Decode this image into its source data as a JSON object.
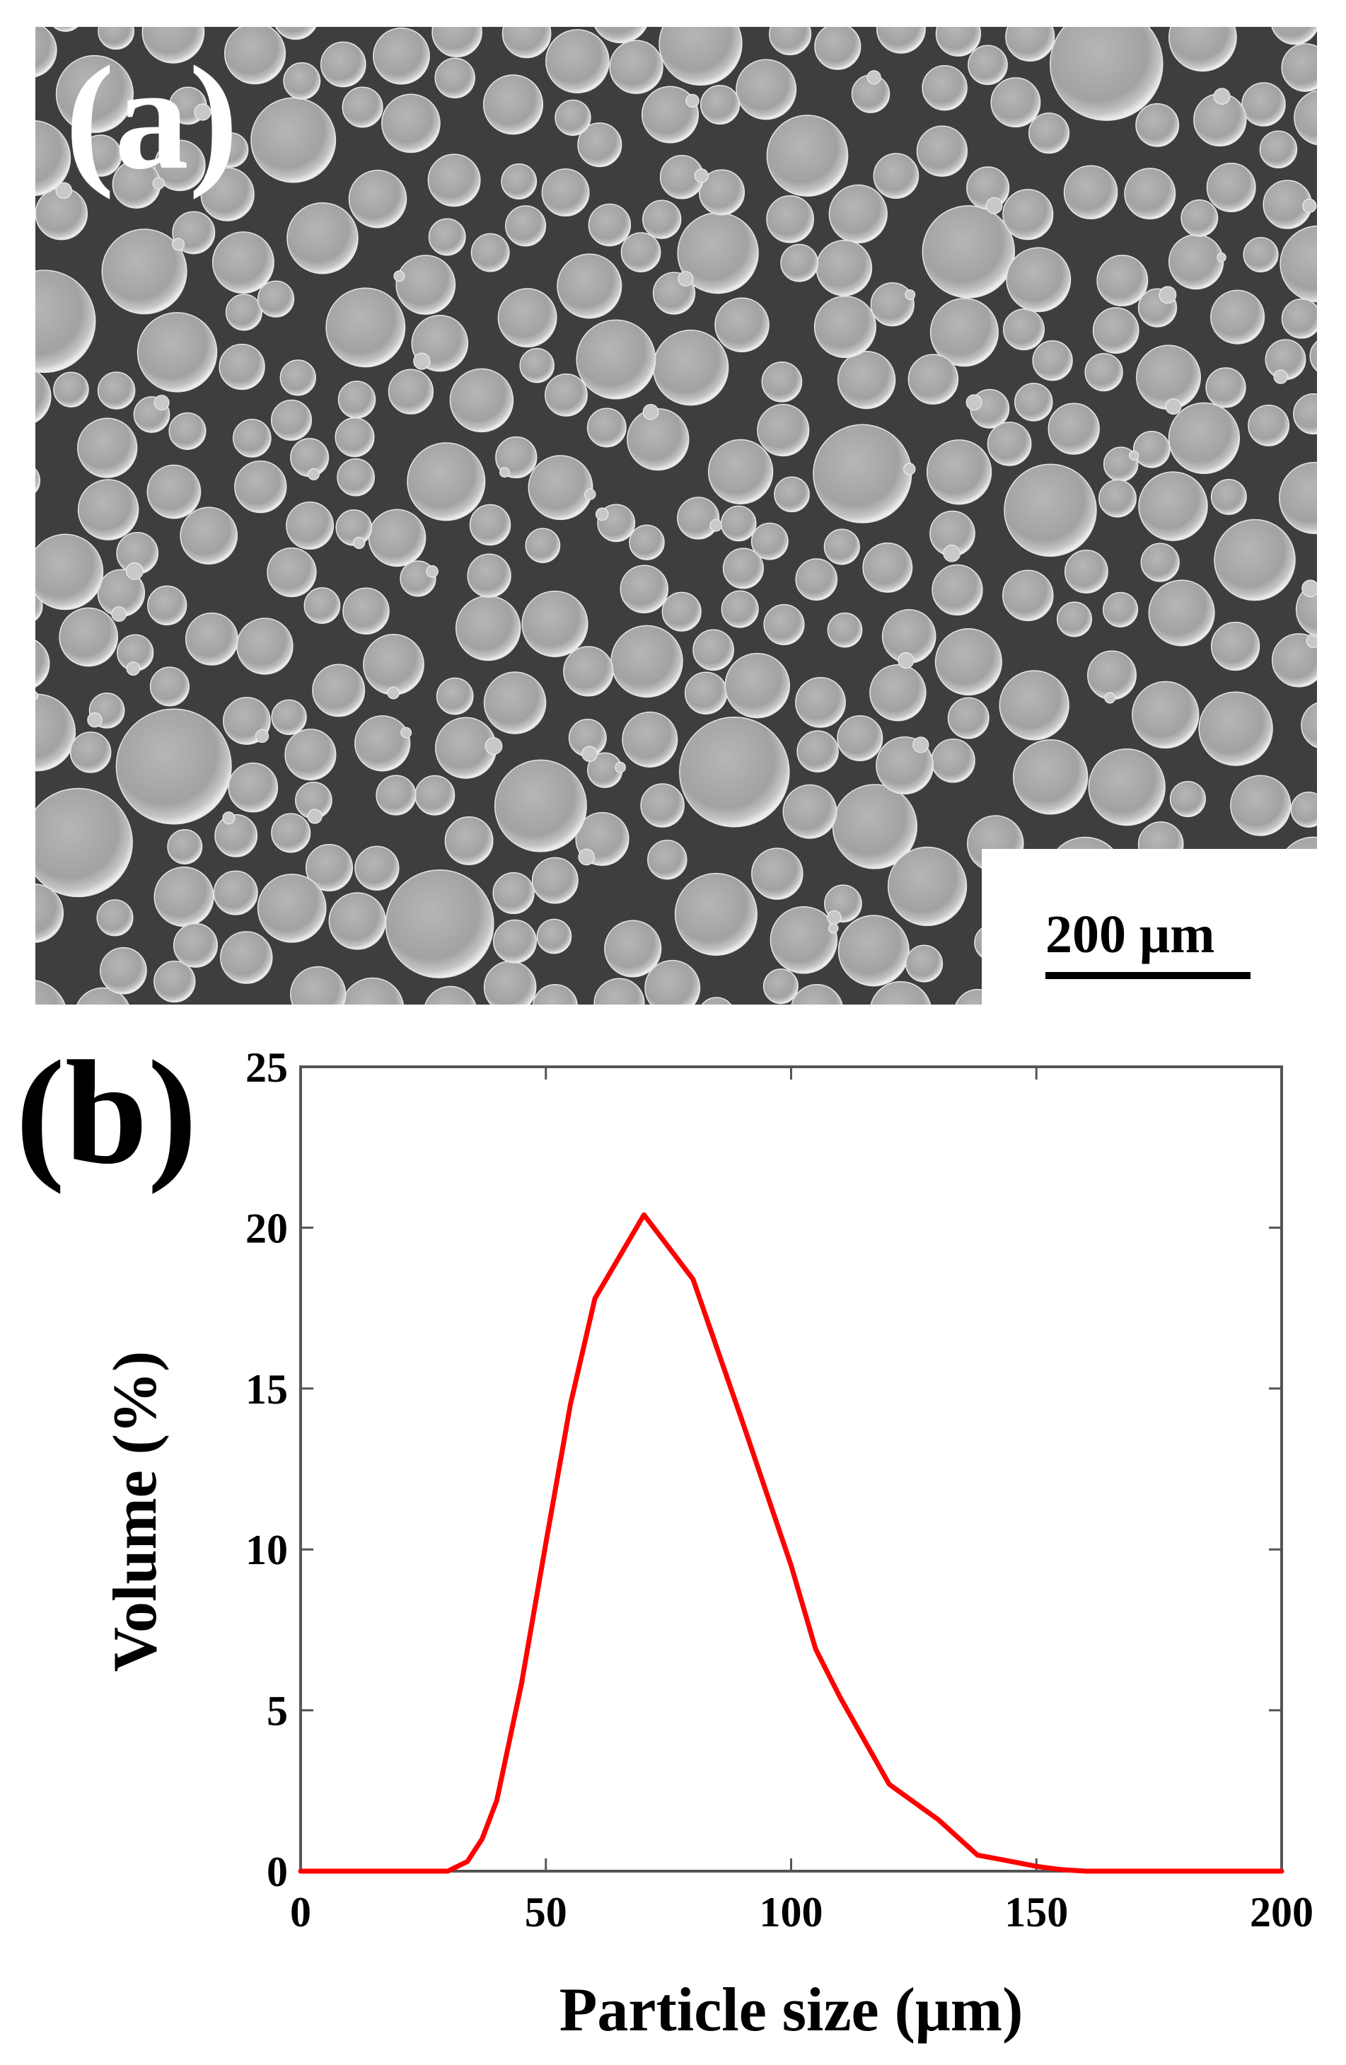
{
  "panel_a": {
    "label": "(a)",
    "scale_bar_text": "200 μm"
  },
  "panel_b": {
    "label": "(b)"
  },
  "chart_data": {
    "type": "line",
    "title": "",
    "xlabel": "Particle size (μm)",
    "ylabel": "Volume (%)",
    "xlim": [
      0,
      200
    ],
    "ylim": [
      0,
      25
    ],
    "xticks": [
      0,
      50,
      100,
      150,
      200
    ],
    "yticks": [
      0,
      5,
      10,
      15,
      20,
      25
    ],
    "grid": false,
    "line_color": "#ff0000",
    "series": [
      {
        "x": [
          0,
          30,
          34,
          37,
          40,
          45,
          50,
          55,
          60,
          65,
          70,
          80,
          90,
          100,
          105,
          110,
          120,
          130,
          138,
          145,
          150,
          155,
          160,
          200
        ],
        "values": [
          0,
          0,
          0.3,
          1.0,
          2.2,
          5.8,
          10.2,
          14.5,
          17.8,
          19.1,
          20.4,
          18.4,
          14.0,
          9.5,
          6.9,
          5.4,
          2.7,
          1.6,
          0.5,
          0.3,
          0.15,
          0.05,
          0,
          0
        ]
      }
    ]
  }
}
